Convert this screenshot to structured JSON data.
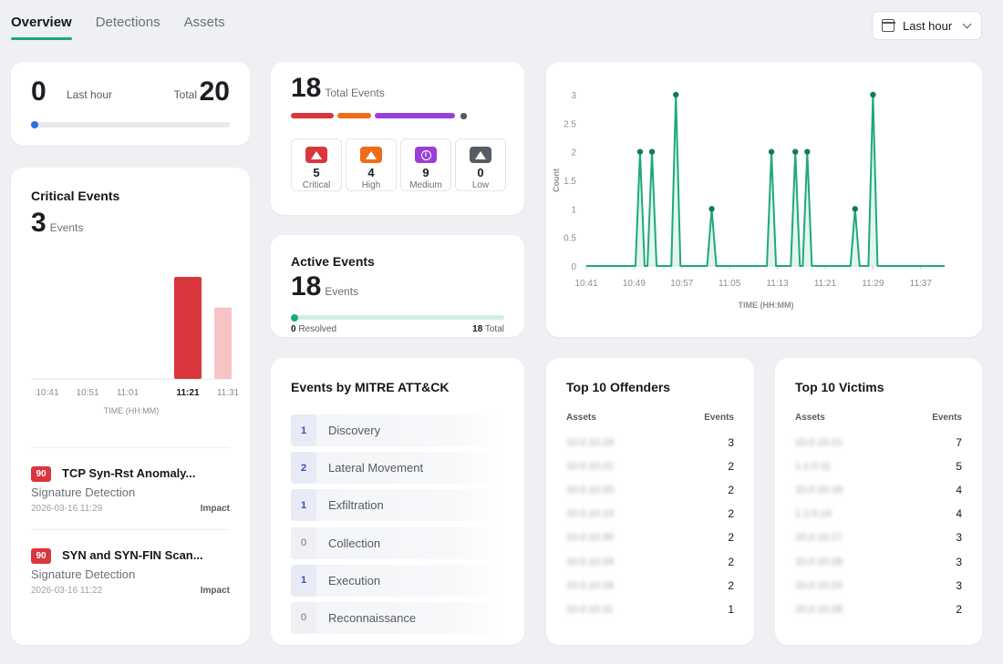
{
  "tabs": [
    {
      "label": "Overview",
      "active": true
    },
    {
      "label": "Detections",
      "active": false
    },
    {
      "label": "Assets",
      "active": false
    }
  ],
  "time_range": {
    "label": "Last hour",
    "icon": "calendar-icon"
  },
  "summary": {
    "count": "0",
    "count_label": "Last hour",
    "total_label": "Total",
    "total": "20",
    "progress_fraction": 0
  },
  "critical": {
    "title": "Critical Events",
    "count": "3",
    "unit": "Events",
    "chart_data": {
      "type": "bar",
      "categories": [
        "10:41",
        "10:51",
        "11:01",
        "11:21",
        "11:31"
      ],
      "values": [
        0,
        0,
        0,
        2,
        1.4
      ],
      "highlighted": "11:21",
      "xlabel": "TIME (HH:MM)",
      "colors": {
        "selected": "#d9363e",
        "other": "#f7c4c6"
      }
    },
    "events": [
      {
        "score": "90",
        "name": "TCP Syn-Rst Anomaly...",
        "source": "Signature Detection",
        "timestamp": "2026-03-16 11:29",
        "tactic": "Impact"
      },
      {
        "score": "90",
        "name": "SYN and SYN-FIN Scan...",
        "source": "Signature Detection",
        "timestamp": "2026-03-16 11:22",
        "tactic": "Impact"
      }
    ]
  },
  "total_events": {
    "count": "18",
    "unit": "Total Events",
    "severities": [
      {
        "key": "critical",
        "count": "5",
        "label": "Critical",
        "color": "#d9363e",
        "icon": "warning-icon"
      },
      {
        "key": "high",
        "count": "4",
        "label": "High",
        "color": "#ef6c1a",
        "icon": "warning-icon"
      },
      {
        "key": "medium",
        "count": "9",
        "label": "Medium",
        "color": "#9b3fd8",
        "icon": "info-icon"
      },
      {
        "key": "low",
        "count": "0",
        "label": "Low",
        "color": "#555c66",
        "icon": "warning-icon"
      }
    ]
  },
  "active_events": {
    "title": "Active Events",
    "count": "18",
    "unit": "Events",
    "resolved_num": "0",
    "resolved_label": "Resolved",
    "total_num": "18",
    "total_label": "Total",
    "resolved_fraction": 0
  },
  "timeline": {
    "chart_data": {
      "type": "line",
      "xlabel": "TIME (HH:MM)",
      "ylabel": "Count",
      "ylim": [
        0,
        3
      ],
      "yticks": [
        "0",
        "0.5",
        "1",
        "1.5",
        "2",
        "2.5",
        "3"
      ],
      "xticks": [
        "10:41",
        "10:49",
        "10:57",
        "11:05",
        "11:13",
        "11:21",
        "11:29",
        "11:37"
      ],
      "x_minutes_from_first_tick": [
        0,
        9,
        11,
        15,
        21,
        31,
        35,
        37,
        45,
        48,
        54
      ],
      "values": [
        0,
        2,
        2,
        3,
        1,
        2,
        2,
        2,
        1,
        3,
        0
      ],
      "x_range_minutes": [
        0,
        60
      ],
      "color": "#1ea97c"
    }
  },
  "mitre": {
    "title": "Events by MITRE ATT&CK",
    "tactics": [
      {
        "count": "1",
        "name": "Discovery"
      },
      {
        "count": "2",
        "name": "Lateral Movement"
      },
      {
        "count": "1",
        "name": "Exfiltration"
      },
      {
        "count": "0",
        "name": "Collection"
      },
      {
        "count": "1",
        "name": "Execution"
      },
      {
        "count": "0",
        "name": "Reconnaissance"
      }
    ]
  },
  "offenders": {
    "title": "Top 10 Offenders",
    "col_asset": "Assets",
    "col_events": "Events",
    "rows": [
      {
        "asset": "10.0.10.24",
        "events": "3"
      },
      {
        "asset": "10.0.10.21",
        "events": "2"
      },
      {
        "asset": "10.0.10.20",
        "events": "2"
      },
      {
        "asset": "10.0.10.13",
        "events": "2"
      },
      {
        "asset": "10.0.10.30",
        "events": "2"
      },
      {
        "asset": "10.0.10.24",
        "events": "2"
      },
      {
        "asset": "10.0.10.18",
        "events": "2"
      },
      {
        "asset": "10.0.10.11",
        "events": "1"
      }
    ]
  },
  "victims": {
    "title": "Top 10 Victims",
    "col_asset": "Assets",
    "col_events": "Events",
    "rows": [
      {
        "asset": "10.0.10.21",
        "events": "7"
      },
      {
        "asset": "1.1.0.11",
        "events": "5"
      },
      {
        "asset": "10.0.10.18",
        "events": "4"
      },
      {
        "asset": "1.1.0.14",
        "events": "4"
      },
      {
        "asset": "10.0.10.17",
        "events": "3"
      },
      {
        "asset": "10.0.10.28",
        "events": "3"
      },
      {
        "asset": "10.0.10.24",
        "events": "3"
      },
      {
        "asset": "10.0.10.28",
        "events": "2"
      }
    ]
  }
}
